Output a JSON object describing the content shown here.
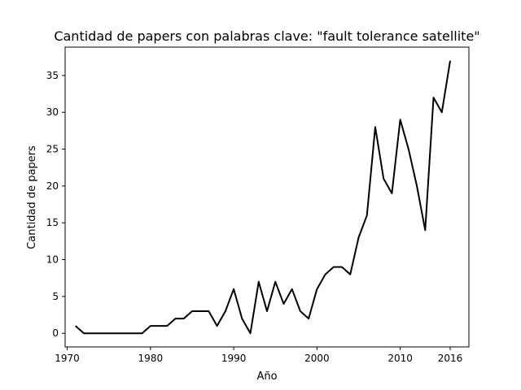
{
  "chart_data": {
    "type": "line",
    "title": "Cantidad de papers con palabras clave: \"fault tolerance satellite\"",
    "xlabel": "Año",
    "ylabel": "Cantidad de papers",
    "xlim": [
      1969.75,
      2018.25
    ],
    "ylim": [
      -1.85,
      38.85
    ],
    "xticks": [
      1970,
      1980,
      1990,
      2000,
      2010,
      2016
    ],
    "yticks": [
      0,
      5,
      10,
      15,
      20,
      25,
      30,
      35
    ],
    "grid": false,
    "line_color": "#000000",
    "x": [
      1971,
      1972,
      1973,
      1974,
      1975,
      1976,
      1977,
      1978,
      1979,
      1980,
      1981,
      1982,
      1983,
      1984,
      1985,
      1986,
      1987,
      1988,
      1989,
      1990,
      1991,
      1992,
      1993,
      1994,
      1995,
      1996,
      1997,
      1998,
      1999,
      2000,
      2001,
      2002,
      2003,
      2004,
      2005,
      2006,
      2007,
      2008,
      2009,
      2010,
      2011,
      2012,
      2013,
      2014,
      2015,
      2016
    ],
    "y": [
      1,
      0,
      0,
      0,
      0,
      0,
      0,
      0,
      0,
      1,
      1,
      1,
      2,
      2,
      3,
      3,
      3,
      1,
      3,
      6,
      2,
      0,
      7,
      3,
      7,
      4,
      6,
      3,
      2,
      6,
      8,
      9,
      9,
      8,
      13,
      16,
      28,
      21,
      19,
      29,
      25,
      20,
      14,
      32,
      30,
      37
    ]
  }
}
